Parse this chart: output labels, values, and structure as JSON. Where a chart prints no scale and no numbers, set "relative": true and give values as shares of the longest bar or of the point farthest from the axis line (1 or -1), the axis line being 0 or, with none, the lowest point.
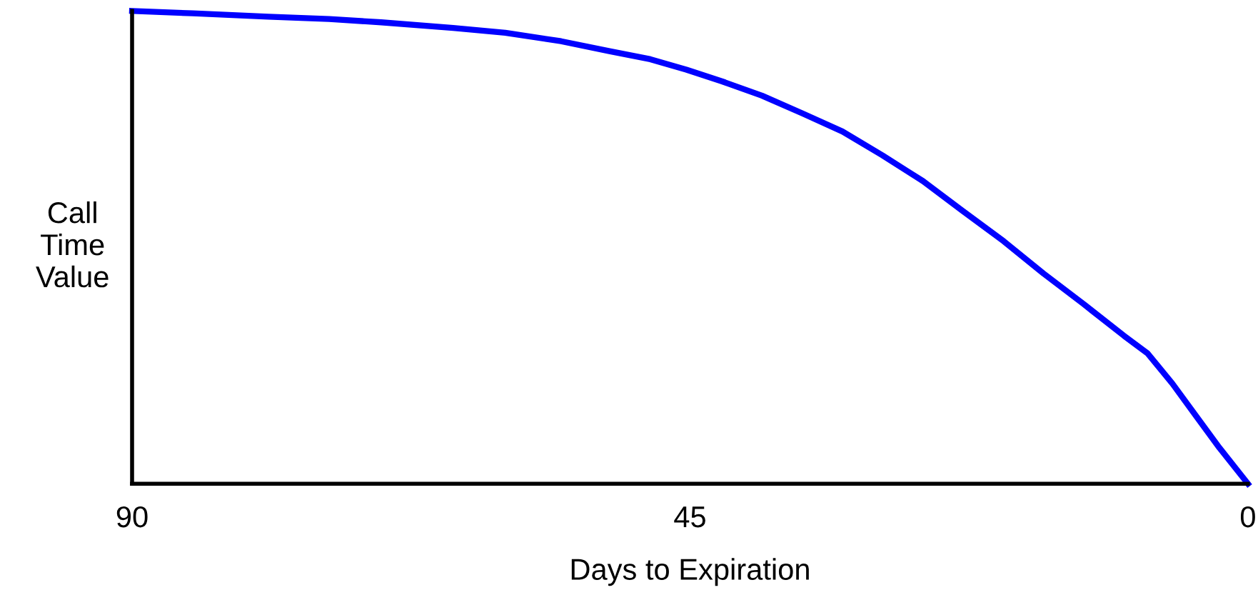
{
  "chart_data": {
    "type": "line",
    "xlabel": "Days to Expiration",
    "ylabel": "Call\nTime\nValue",
    "relative": true,
    "xlim": [
      90,
      0
    ],
    "xticks": [
      90,
      45,
      0
    ],
    "tick_labels": "x",
    "grid": false,
    "marker": "none",
    "line_style": "solid",
    "x": [
      90,
      85.1,
      79.0,
      74.1,
      69.9,
      64.1,
      59.9,
      55.4,
      51.5,
      48.2,
      45.3,
      42.4,
      39.2,
      35.9,
      32.7,
      29.5,
      26.2,
      23.0,
      19.7,
      16.5,
      13.3,
      10.0,
      8.1,
      6.1,
      4.2,
      2.3,
      0
    ],
    "series": [
      {
        "color": "#0000ff",
        "values": [
          1.0,
          0.995,
          0.988,
          0.983,
          0.976,
          0.964,
          0.954,
          0.936,
          0.915,
          0.898,
          0.876,
          0.851,
          0.821,
          0.783,
          0.745,
          0.695,
          0.64,
          0.577,
          0.513,
          0.445,
          0.381,
          0.313,
          0.276,
          0.212,
          0.144,
          0.076,
          0
        ]
      }
    ]
  }
}
